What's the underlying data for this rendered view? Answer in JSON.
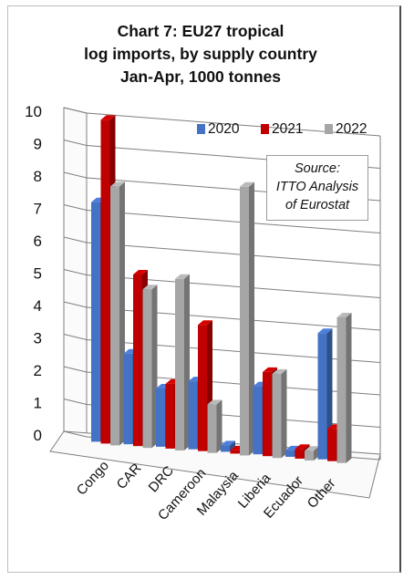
{
  "title_lines": [
    "Chart 7: EU27 tropical",
    "log imports, by supply country",
    "Jan-Apr, 1000 tonnes"
  ],
  "source_lines": [
    "Source:",
    "ITTO  Analysis",
    "of Eurostat"
  ],
  "colors": {
    "2020": "#4472c4",
    "2021": "#c00000",
    "2022": "#a6a6a6"
  },
  "chart_data": {
    "type": "bar",
    "title": "Chart 7: EU27 tropical log imports, by supply country Jan-Apr, 1000 tonnes",
    "xlabel": "",
    "ylabel": "",
    "ylim": [
      0,
      10
    ],
    "yticks": [
      0,
      1,
      2,
      3,
      4,
      5,
      6,
      7,
      8,
      9,
      10
    ],
    "grid": true,
    "legend_position": "top-right",
    "categories": [
      "Congo",
      "CAR",
      "DRC",
      "Cameroon",
      "Malaysia",
      "Liberia",
      "Ecuador",
      "Other"
    ],
    "series": [
      {
        "name": "2020",
        "values": [
          7.4,
          2.8,
          1.8,
          2.1,
          0.2,
          2.1,
          0.2,
          3.9
        ]
      },
      {
        "name": "2021",
        "values": [
          10.0,
          5.3,
          2.0,
          3.9,
          0.1,
          2.6,
          0.3,
          1.0
        ]
      },
      {
        "name": "2022",
        "values": [
          8.0,
          4.9,
          5.3,
          1.5,
          8.3,
          2.6,
          0.3,
          4.5
        ]
      }
    ]
  }
}
